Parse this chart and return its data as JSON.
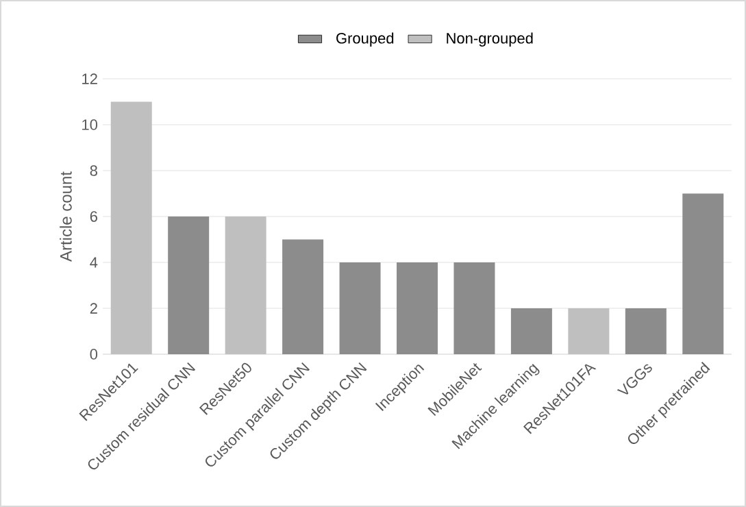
{
  "chart_data": {
    "type": "bar",
    "ylabel": "Article count",
    "categories": [
      "ResNet101",
      "Custom residual CNN",
      "ResNet50",
      "Custom parallel CNN",
      "Custom depth CNN",
      "Inception",
      "MobileNet",
      "Machine learning",
      "ResNet101FA",
      "VGGs",
      "Other pretrained"
    ],
    "series": [
      {
        "name": "Grouped",
        "color": "#8c8c8c",
        "values": [
          null,
          6,
          null,
          5,
          4,
          4,
          4,
          2,
          null,
          2,
          7
        ]
      },
      {
        "name": "Non-grouped",
        "color": "#bfbfbf",
        "values": [
          11,
          null,
          6,
          null,
          null,
          null,
          null,
          null,
          2,
          null,
          null
        ]
      }
    ],
    "ylim": [
      0,
      12
    ],
    "yticks": [
      0,
      2,
      4,
      6,
      8,
      10,
      12
    ],
    "grid": "y",
    "legend": "top"
  }
}
